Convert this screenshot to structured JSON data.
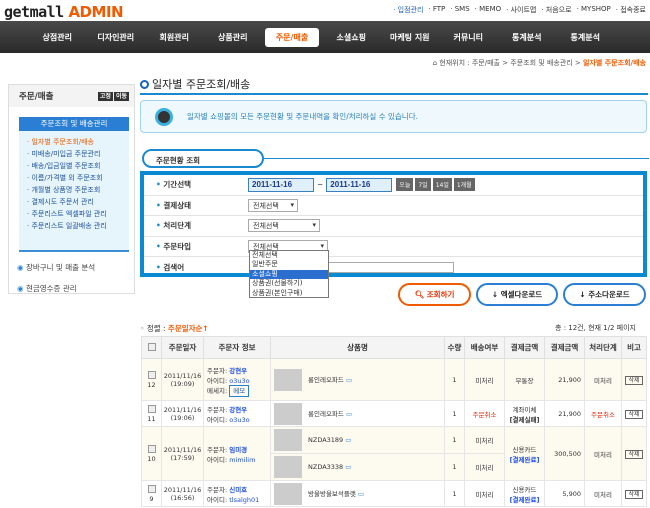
{
  "logo": {
    "part1": "getmall",
    "part2": "ADMIN"
  },
  "top_links": [
    "· 입점관리",
    "· FTP",
    "· SMS",
    "· MEMO",
    "· 사이트맵",
    "· 처음으로",
    "· MYSHOP",
    "· 접속종료"
  ],
  "nav": [
    "상점관리",
    "디자인관리",
    "회원관리",
    "상품관리",
    "주문/매출",
    "소셜쇼핑",
    "마케팅 지원",
    "커뮤니티",
    "통계분석",
    "통계분석"
  ],
  "nav_active": 4,
  "breadcrumb": {
    "prefix": "현재위치 : 주문/매출 > 주문조회 및 배송관리 > ",
    "current": "일자별 주문조회/배송"
  },
  "sidebar": {
    "title": "주문/매출",
    "btn1": "고정",
    "btn2": "이동",
    "section": "주문조회 및 배송관리",
    "items": [
      "· 일자별 주문조회/배송",
      "· 미배송/미입금 주문관리",
      "· 배송/입금일별 주문조회",
      "· 이름/가격별 외 주문조회",
      "· 개월별 상품명 주문조회",
      "· 결제시도 주문서 관리",
      "· 주문리스트 엑셀파일 관리",
      "· 주문리스트 일괄배송 관리"
    ],
    "extra": [
      "장바구니 및 매출 분석",
      "현금영수증 관리"
    ]
  },
  "page_title": "일자별 주문조회/배송",
  "info": "일자별 쇼핑몰의 모든 주문현황 및 주문내역을 확인/처리하실 수 있습니다.",
  "tab": "주문현황 조회",
  "form": {
    "period_label": "기간선택",
    "date_from": "2011-11-16",
    "tilde": "~",
    "date_to": "2011-11-16",
    "quick": [
      "오늘",
      "7일",
      "14일",
      "1개월"
    ],
    "pay_label": "결제상태",
    "pay_value": "전체선택",
    "proc_label": "처리단계",
    "proc_value": "전체선택",
    "type_label": "주문타입",
    "type_value": "전체선택",
    "search_label": "검색어",
    "type_options": [
      "전체선택",
      "일반주문",
      "소셜쇼핑",
      "상품권(선물하기)",
      "상품권(본인구매)"
    ],
    "type_highlight": 2
  },
  "buttons": {
    "search": "조회하기",
    "excel": "엑셀다운로드",
    "address": "주소다운로드"
  },
  "sort": {
    "label": "정렬 : ",
    "value": "주문일자순↑"
  },
  "count": "총 : 12건,   현재 1/2 페이지",
  "table": {
    "headers": [
      "",
      "주문일자",
      "주문자 정보",
      "상품명",
      "수량",
      "배송여부",
      "결제금액",
      "결제금액",
      "처리단계",
      "비고"
    ],
    "rows": [
      {
        "no": "12",
        "date": "2011/11/16",
        "time": "(19:09)",
        "buyer_label": "주문자:",
        "buyer": "강현우",
        "id_label": "아이디:",
        "id": "o3u3o",
        "msg_label": "메세지:",
        "memo": "메모",
        "items": [
          {
            "name": "롱인레오파드",
            "qty": "1",
            "ship": "미처리"
          }
        ],
        "pay": "무통장",
        "pay_status": "",
        "amount": "21,900",
        "step": "미처리",
        "del": "삭제"
      },
      {
        "no": "11",
        "date": "2011/11/16",
        "time": "(19:06)",
        "buyer_label": "주문자:",
        "buyer": "강현우",
        "id_label": "아이디:",
        "id": "o3u3o",
        "items": [
          {
            "name": "롱인레오파드",
            "qty": "1",
            "ship": "주문취소"
          }
        ],
        "pay": "계좌이체",
        "pay_status": "[결제실패]",
        "amount": "21,900",
        "step": "주문취소",
        "del": "삭제"
      },
      {
        "no": "10",
        "date": "2011/11/16",
        "time": "(17:59)",
        "buyer_label": "주문자:",
        "buyer": "임미경",
        "id_label": "아이디:",
        "id": "mimilim",
        "items": [
          {
            "name": "NZDA3189",
            "qty": "1",
            "ship": "미처리"
          },
          {
            "name": "NZDA3338",
            "qty": "1",
            "ship": "미처리"
          }
        ],
        "pay": "신용카드",
        "pay_status": "[결제완료]",
        "amount": "300,500",
        "step": "미처리",
        "del": "삭제"
      },
      {
        "no": "9",
        "date": "2011/11/16",
        "time": "(16:56)",
        "buyer_label": "주문자:",
        "buyer": "신미호",
        "id_label": "아이디:",
        "id": "tlsalgh01",
        "items": [
          {
            "name": "방울방울보석플랫",
            "qty": "1",
            "ship": "미처리"
          }
        ],
        "pay": "신용카드",
        "pay_status": "[결제완료]",
        "amount": "5,900",
        "step": "미처리",
        "del": "삭제"
      }
    ]
  },
  "colors": {
    "accent": "#f05a00",
    "blue": "#0a8ad0",
    "nav": "#333333"
  }
}
